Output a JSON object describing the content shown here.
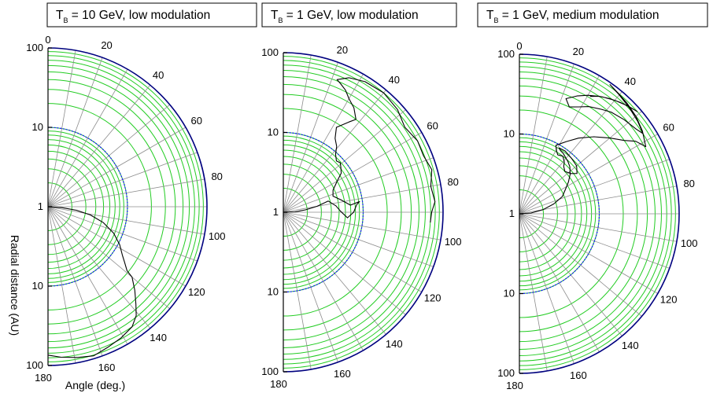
{
  "chart_data": [
    {
      "type": "polar-line",
      "title": {
        "main": "T",
        "subscript": "B",
        "rest": " = 10 GeV, low modulation"
      },
      "radial_axis": {
        "scale": "log",
        "range": [
          1,
          100
        ],
        "tick_labels": [
          "100",
          "10",
          "1",
          "10",
          "100"
        ]
      },
      "angular_axis": {
        "range": [
          0,
          180
        ],
        "tick_labels": [
          "0",
          "20",
          "40",
          "60",
          "80",
          "100",
          "120",
          "140",
          "160",
          "180"
        ]
      },
      "heliopause_radius_au": 10,
      "ylabel": "Radial distance (AU)",
      "xlabel": "Angle (deg.)",
      "trajectory": {
        "theta_deg": [
          91,
          94,
          97,
          101,
          106,
          112,
          118,
          123,
          126,
          129,
          130,
          134,
          138,
          141,
          145,
          151,
          157,
          163,
          169,
          175,
          180
        ],
        "r_au": [
          1,
          1.5,
          2.3,
          3.5,
          5.3,
          7.8,
          10.5,
          13,
          15.5,
          19,
          24,
          33,
          45,
          58,
          70,
          78,
          84,
          92,
          86,
          80,
          74
        ]
      }
    },
    {
      "type": "polar-line",
      "title": {
        "main": "T",
        "subscript": "B",
        "rest": " = 1 GeV, low modulation"
      },
      "radial_axis": {
        "scale": "log",
        "range": [
          1,
          100
        ],
        "tick_labels": [
          "100",
          "10",
          "1",
          "10",
          "100"
        ]
      },
      "angular_axis": {
        "range": [
          0,
          180
        ],
        "tick_labels": [
          "20",
          "40",
          "60",
          "80",
          "100",
          "120",
          "140",
          "160",
          "180"
        ]
      },
      "heliopause_radius_au": 10,
      "trajectory": {
        "theta_deg": [
          91,
          88,
          84,
          80,
          76,
          83,
          89,
          95,
          90,
          84,
          82,
          84,
          78,
          72,
          66,
          60,
          56,
          52,
          49,
          46,
          42,
          39,
          35,
          32,
          36,
          38,
          34,
          30,
          27,
          24,
          22,
          26,
          32,
          40,
          48,
          55,
          62,
          68,
          74,
          80,
          86,
          90,
          94
        ],
        "r_au": [
          1,
          1.4,
          1.9,
          2.7,
          3.8,
          4.6,
          5.2,
          6.4,
          7.6,
          8.4,
          9.2,
          7.0,
          5.5,
          4.5,
          4.8,
          6.0,
          7.5,
          8.2,
          8.8,
          8.4,
          9.5,
          11.5,
          13.5,
          18,
          25,
          30,
          38,
          44,
          52,
          58,
          62,
          75,
          85,
          90,
          84,
          72,
          80,
          78,
          86,
          75,
          80,
          72,
          70
        ]
      }
    },
    {
      "type": "polar-line",
      "title": {
        "main": "T",
        "subscript": "B",
        "rest": " = 1 GeV, medium modulation"
      },
      "radial_axis": {
        "scale": "log",
        "range": [
          1,
          100
        ],
        "tick_labels": [
          "100",
          "10",
          "1",
          "10",
          "100"
        ]
      },
      "angular_axis": {
        "range": [
          0,
          180
        ],
        "tick_labels": [
          "0",
          "20",
          "40",
          "60",
          "80",
          "100",
          "120",
          "140",
          "160",
          "180"
        ]
      },
      "heliopause_radius_au": 10,
      "trajectory": {
        "theta_deg": [
          90,
          86,
          80,
          74,
          68,
          62,
          57,
          52,
          47,
          43,
          39,
          36,
          33,
          31,
          36,
          43,
          50,
          55,
          52,
          47,
          43,
          41,
          37,
          33,
          30,
          28,
          33,
          38,
          44,
          50,
          55,
          58,
          62,
          56,
          50,
          44,
          39,
          35,
          40,
          46,
          52,
          57,
          54,
          48,
          42,
          38,
          33,
          29,
          25,
          22,
          26,
          30,
          35,
          40,
          45,
          49,
          46,
          42,
          38,
          34,
          31
        ],
        "r_au": [
          1,
          1.4,
          2,
          2.8,
          3.8,
          4.5,
          5.4,
          6.4,
          7.3,
          7.8,
          8.2,
          8.6,
          8.8,
          9.2,
          9.4,
          9.0,
          8.6,
          7.6,
          6.6,
          6.0,
          6.5,
          7.2,
          8.0,
          7.6,
          8.4,
          9.4,
          12,
          16,
          22,
          30,
          40,
          52,
          62,
          72,
          80,
          86,
          90,
          95,
          88,
          82,
          76,
          70,
          64,
          58,
          52,
          46,
          40,
          34,
          30,
          36,
          44,
          52,
          62,
          72,
          82,
          90,
          84,
          76,
          68,
          60,
          52
        ]
      }
    }
  ]
}
